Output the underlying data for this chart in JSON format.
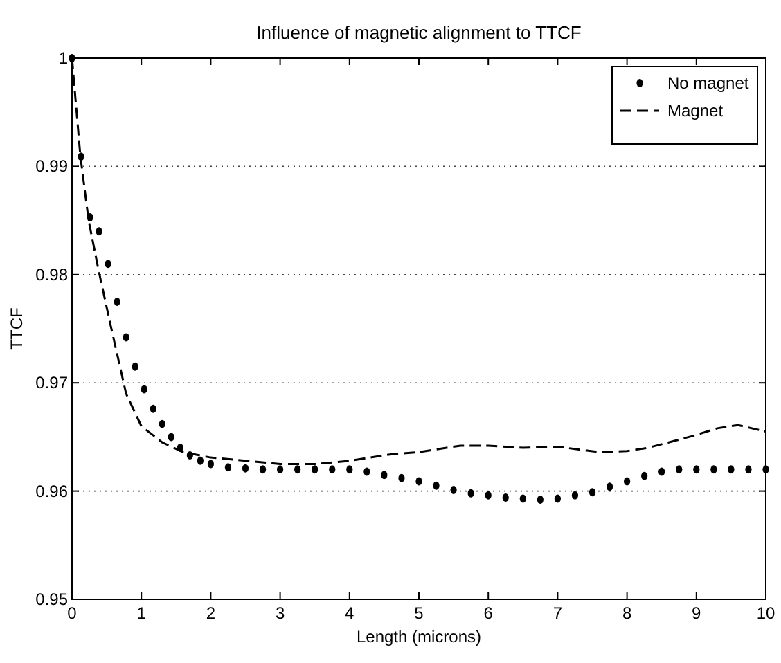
{
  "chart_data": {
    "type": "line",
    "title": "Influence of magnetic alignment to TTCF",
    "xlabel": "Length (microns)",
    "ylabel": "TTCF",
    "xlim": [
      0,
      10
    ],
    "xticks": [
      0,
      1,
      2,
      3,
      4,
      5,
      6,
      7,
      8,
      9,
      10
    ],
    "ylim": [
      0.95,
      1
    ],
    "yticks": [
      0.95,
      0.96,
      0.97,
      0.98,
      0.99,
      1
    ],
    "grid": "y",
    "legend": "top right",
    "series": [
      {
        "name": "No magnet",
        "type": "scatter",
        "marker": "circle",
        "color": "#000000",
        "x": [
          0,
          0.13,
          0.26,
          0.39,
          0.52,
          0.65,
          0.78,
          0.91,
          1.04,
          1.17,
          1.3,
          1.43,
          1.56,
          1.7,
          1.85,
          2,
          2.25,
          2.5,
          2.75,
          3,
          3.25,
          3.5,
          3.75,
          4,
          4.25,
          4.5,
          4.75,
          5,
          5.25,
          5.5,
          5.75,
          6,
          6.25,
          6.5,
          6.75,
          7,
          7.25,
          7.5,
          7.75,
          8,
          8.25,
          8.5,
          8.75,
          9,
          9.25,
          9.5,
          9.75,
          10
        ],
        "values": [
          1,
          0.9909,
          0.9853,
          0.984,
          0.981,
          0.9775,
          0.9742,
          0.9715,
          0.9694,
          0.9676,
          0.9662,
          0.965,
          0.964,
          0.9633,
          0.9628,
          0.9625,
          0.9622,
          0.9621,
          0.962,
          0.962,
          0.962,
          0.962,
          0.962,
          0.962,
          0.9618,
          0.9615,
          0.9612,
          0.9609,
          0.9605,
          0.9601,
          0.9598,
          0.9596,
          0.9594,
          0.9593,
          0.9592,
          0.9593,
          0.9596,
          0.9599,
          0.9604,
          0.9609,
          0.9614,
          0.9618,
          0.962,
          0.962,
          0.962,
          0.962,
          0.962,
          0.962
        ]
      },
      {
        "name": "Magnet",
        "line_style": "dashed",
        "color": "#000000",
        "x": [
          0,
          0.12,
          0.24,
          0.38,
          0.55,
          0.78,
          1,
          1.3,
          1.6,
          2,
          2.5,
          3,
          3.5,
          4,
          4.6,
          5,
          5.6,
          6,
          6.5,
          7,
          7.6,
          8,
          8.3,
          8.6,
          8.95,
          9.3,
          9.6,
          10
        ],
        "values": [
          1,
          0.991,
          0.985,
          0.9805,
          0.9755,
          0.969,
          0.966,
          0.9645,
          0.9636,
          0.9631,
          0.9628,
          0.9625,
          0.9625,
          0.9628,
          0.9634,
          0.9636,
          0.9642,
          0.9642,
          0.964,
          0.9641,
          0.9636,
          0.9637,
          0.964,
          0.9645,
          0.9651,
          0.9658,
          0.9661,
          0.9655
        ]
      }
    ]
  }
}
